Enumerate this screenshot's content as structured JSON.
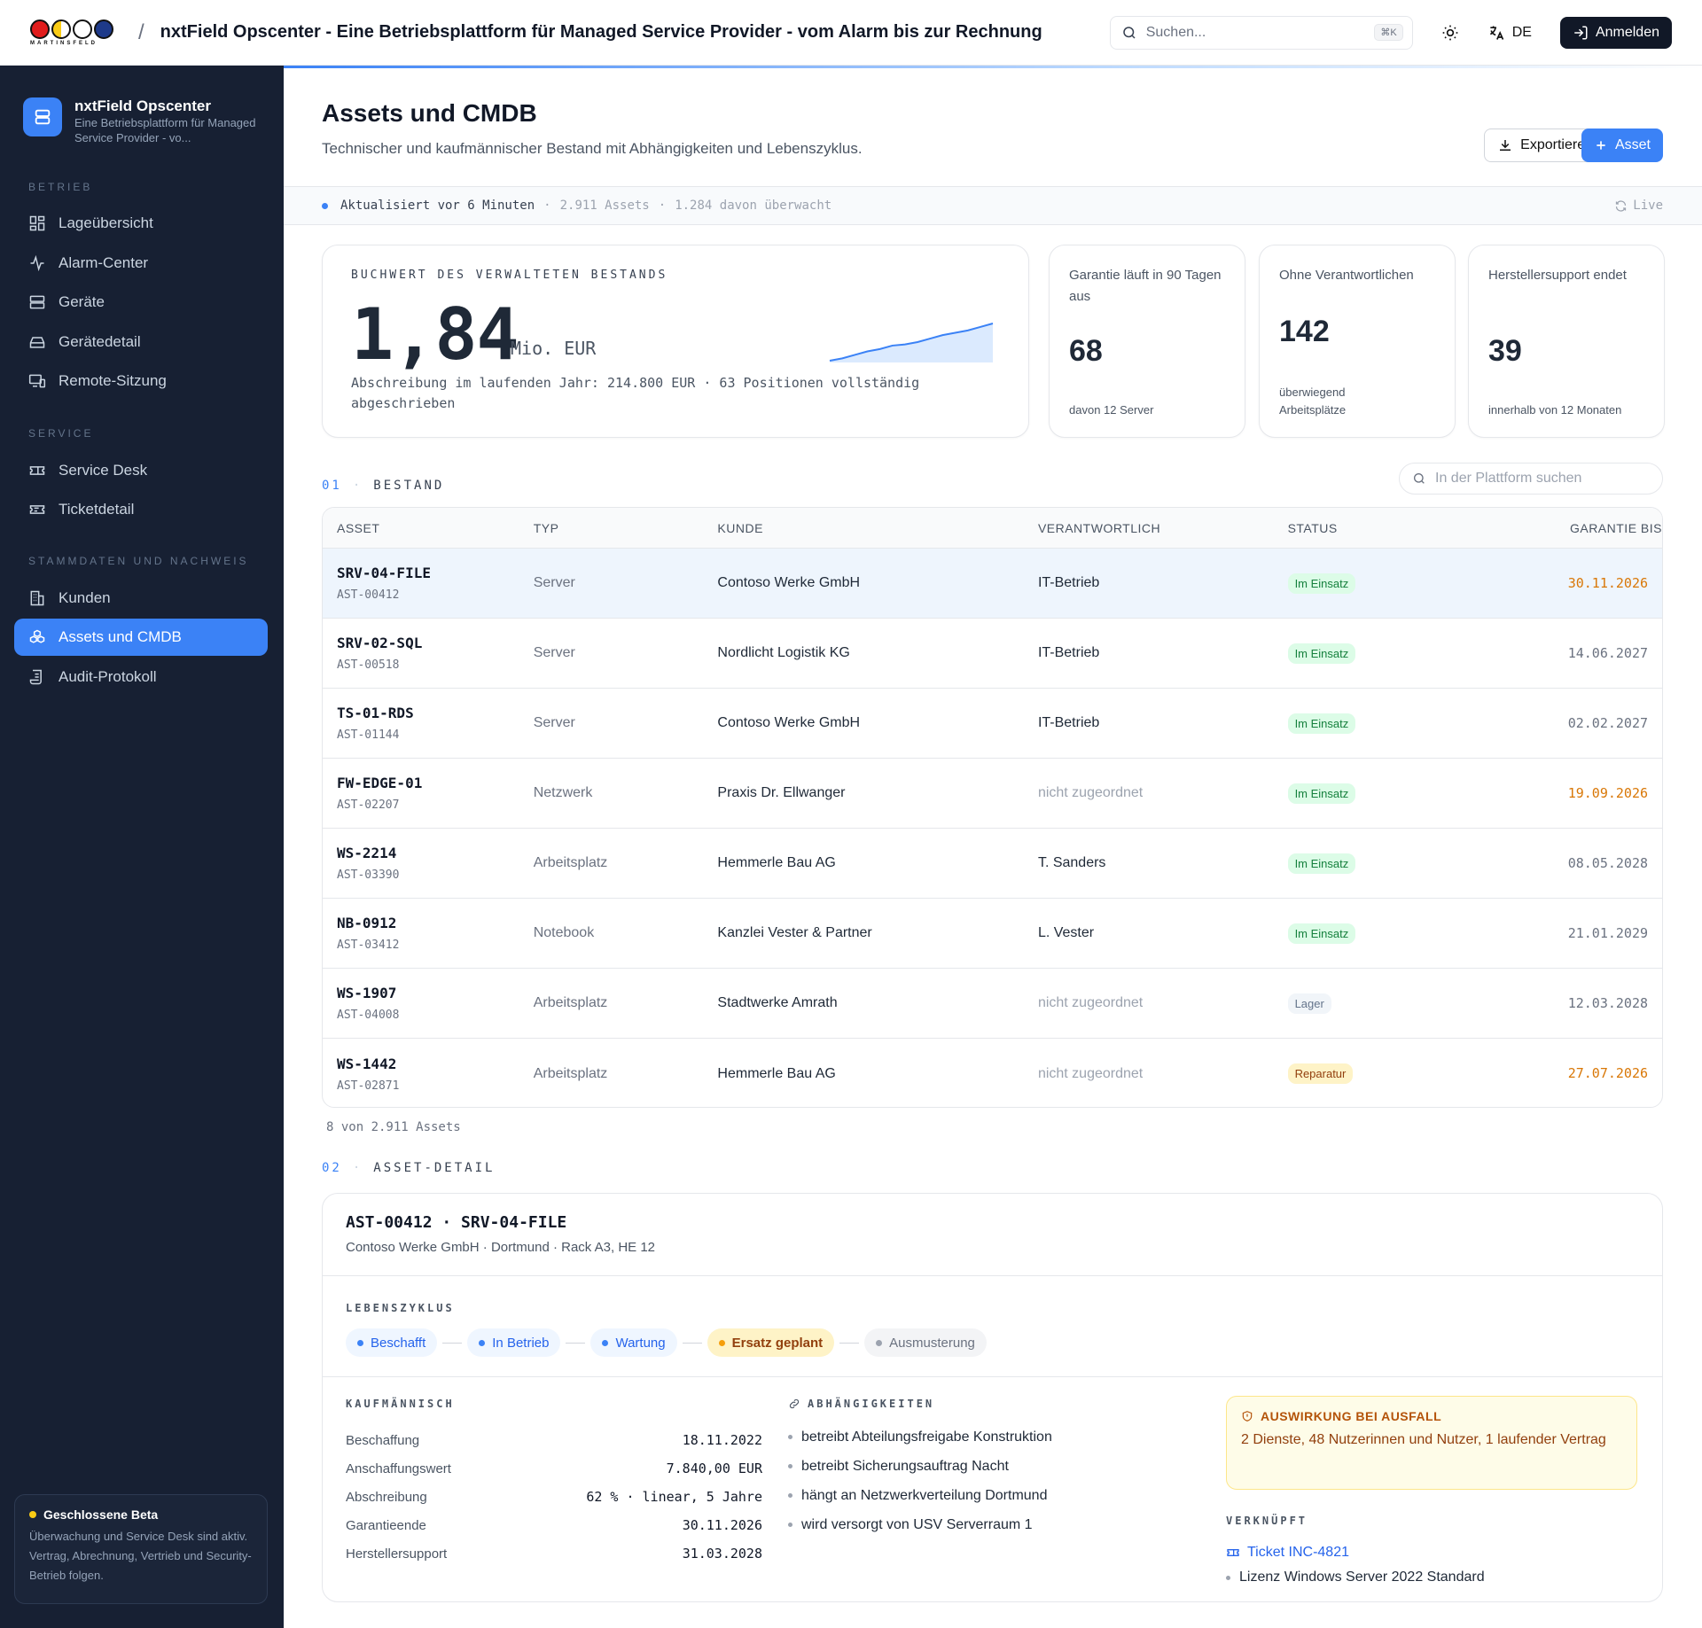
{
  "brand": {
    "logo_text": "MARTINSFELD",
    "title": "nxtField Opscenter - Eine Betriebsplattform für Managed Service Provider - vom Alarm bis zur Rechnung"
  },
  "topbar": {
    "search_placeholder": "Suchen...",
    "search_shortcut": "⌘K",
    "lang": "DE",
    "login": "Anmelden"
  },
  "sidebar": {
    "app_name": "nxtField Opscenter",
    "app_sub": "Eine Betriebsplattform für Managed Service Provider - vo...",
    "sections": [
      {
        "title": "BETRIEB",
        "items": [
          "Lageübersicht",
          "Alarm-Center",
          "Geräte",
          "Gerätedetail",
          "Remote-Sitzung"
        ]
      },
      {
        "title": "SERVICE",
        "items": [
          "Service Desk",
          "Ticketdetail"
        ]
      },
      {
        "title": "STAMMDATEN UND NACHWEIS",
        "items": [
          "Kunden",
          "Assets und CMDB",
          "Audit-Protokoll"
        ]
      }
    ],
    "active": "Assets und CMDB",
    "beta": {
      "title": "Geschlossene Beta",
      "text": "Überwachung und Service Desk sind aktiv. Vertrag, Abrechnung, Vertrieb und Security-Betrieb folgen."
    }
  },
  "page": {
    "title": "Assets und CMDB",
    "subtitle": "Technischer und kaufmännischer Bestand mit Abhängigkeiten und Lebenszyklus.",
    "export": "Exportieren",
    "add": "Asset"
  },
  "status": {
    "updated": "Aktualisiert vor 6 Minuten",
    "assets": "2.911 Assets",
    "monitored": "1.284 davon überwacht",
    "live": "Live"
  },
  "book_value": {
    "kicker": "BUCHWERT DES VERWALTETEN BESTANDS",
    "value": "1,84",
    "unit": "Mio. EUR",
    "note": "Abschreibung im laufenden Jahr: 214.800 EUR · 63 Positionen vollständig abgeschrieben",
    "trend": [
      10,
      12,
      15,
      18,
      20,
      23,
      24,
      26,
      29,
      32,
      34,
      36,
      39,
      42
    ]
  },
  "kpis": [
    {
      "label": "Garantie läuft in 90 Tagen aus",
      "value": "68",
      "foot": "davon 12 Server"
    },
    {
      "label": "Ohne Verantwortlichen",
      "value": "142",
      "foot": "überwiegend Arbeitsplätze"
    },
    {
      "label": "Herstellersupport endet",
      "value": "39",
      "foot": "innerhalb von 12 Monaten"
    }
  ],
  "inventory": {
    "num": "01",
    "title": "BESTAND",
    "search_placeholder": "In der Plattform suchen",
    "columns": [
      "ASSET",
      "TYP",
      "KUNDE",
      "VERANTWORTLICH",
      "STATUS",
      "GARANTIE BIS"
    ],
    "rows": [
      {
        "name": "SRV-04-FILE",
        "id": "AST-00412",
        "type": "Server",
        "customer": "Contoso Werke GmbH",
        "owner": "IT-Betrieb",
        "status": "Im Einsatz",
        "warranty": "30.11.2026"
      },
      {
        "name": "SRV-02-SQL",
        "id": "AST-00518",
        "type": "Server",
        "customer": "Nordlicht Logistik KG",
        "owner": "IT-Betrieb",
        "status": "Im Einsatz",
        "warranty": "14.06.2027"
      },
      {
        "name": "TS-01-RDS",
        "id": "AST-01144",
        "type": "Server",
        "customer": "Contoso Werke GmbH",
        "owner": "IT-Betrieb",
        "status": "Im Einsatz",
        "warranty": "02.02.2027"
      },
      {
        "name": "FW-EDGE-01",
        "id": "AST-02207",
        "type": "Netzwerk",
        "customer": "Praxis Dr. Ellwanger",
        "owner": "nicht zugeordnet",
        "status": "Im Einsatz",
        "warranty": "19.09.2026"
      },
      {
        "name": "WS-2214",
        "id": "AST-03390",
        "type": "Arbeitsplatz",
        "customer": "Hemmerle Bau AG",
        "owner": "T. Sanders",
        "status": "Im Einsatz",
        "warranty": "08.05.2028"
      },
      {
        "name": "NB-0912",
        "id": "AST-03412",
        "type": "Notebook",
        "customer": "Kanzlei Vester & Partner",
        "owner": "L. Vester",
        "status": "Im Einsatz",
        "warranty": "21.01.2029"
      },
      {
        "name": "WS-1907",
        "id": "AST-04008",
        "type": "Arbeitsplatz",
        "customer": "Stadtwerke Amrath",
        "owner": "nicht zugeordnet",
        "status": "Lager",
        "warranty": "12.03.2028"
      },
      {
        "name": "WS-1442",
        "id": "AST-02871",
        "type": "Arbeitsplatz",
        "customer": "Hemmerle Bau AG",
        "owner": "nicht zugeordnet",
        "status": "Reparatur",
        "warranty": "27.07.2026"
      }
    ],
    "count": "8 von 2.911 Assets"
  },
  "detail": {
    "num": "02",
    "section": "ASSET-DETAIL",
    "title": "AST-00412 · SRV-04-FILE",
    "sub": "Contoso Werke GmbH · Dortmund · Rack A3, HE 12",
    "lifecycle_label": "LEBENSZYKLUS",
    "lifecycle": [
      "Beschafft",
      "In Betrieb",
      "Wartung",
      "Ersatz geplant",
      "Ausmusterung"
    ],
    "commercial_label": "KAUFMÄNNISCH",
    "commercial": [
      {
        "k": "Beschaffung",
        "v": "18.11.2022"
      },
      {
        "k": "Anschaffungswert",
        "v": "7.840,00 EUR"
      },
      {
        "k": "Abschreibung",
        "v": "62 % · linear, 5 Jahre"
      },
      {
        "k": "Garantieende",
        "v": "30.11.2026"
      },
      {
        "k": "Herstellersupport",
        "v": "31.03.2028"
      }
    ],
    "deps_label": "ABHÄNGIGKEITEN",
    "deps": [
      "betreibt Abteilungsfreigabe Konstruktion",
      "betreibt Sicherungsauftrag Nacht",
      "hängt an Netzwerkverteilung Dortmund",
      "wird versorgt von USV Serverraum 1"
    ],
    "impact_title": "AUSWIRKUNG BEI AUSFALL",
    "impact_text": "2 Dienste, 48 Nutzerinnen und Nutzer, 1 laufender Vertrag",
    "linked_label": "VERKNÜPFT",
    "linked_ticket": "Ticket INC-4821",
    "linked_license": "Lizenz Windows Server 2022 Standard"
  },
  "colors": {
    "accent": "#3b82f6",
    "sidebar": "#172033",
    "warn": "#d97706"
  }
}
